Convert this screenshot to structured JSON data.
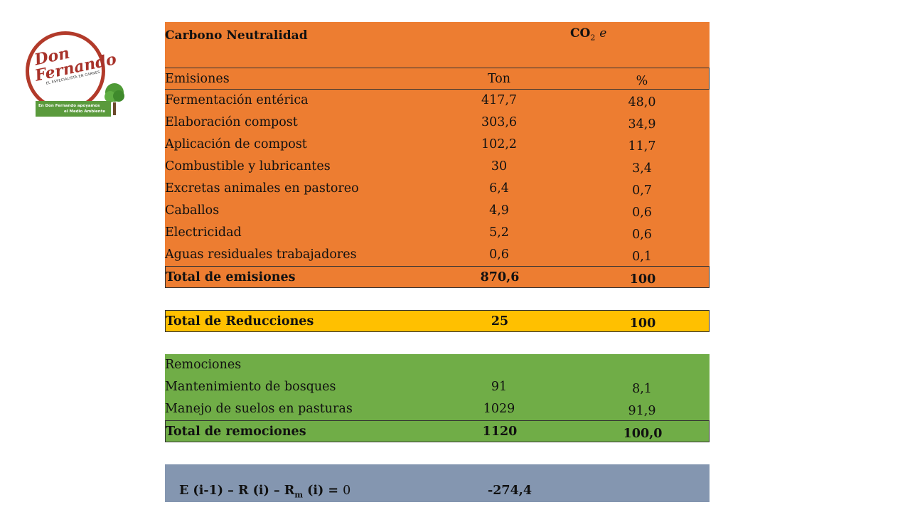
{
  "logo": {
    "brand_line1": "Don",
    "brand_line2": "Fernando",
    "tagline": "EL ESPECIALISTA EN CARNES",
    "banner_line1": "En Don Fernando apoyamos",
    "banner_line2": "el Medio Ambiente"
  },
  "header": {
    "title": "Carbono Neutralidad",
    "unit_main": "CO",
    "unit_sub": "2",
    "unit_suffix": "e"
  },
  "emissions": {
    "col_label": "Emisiones",
    "col_ton": "Ton",
    "col_pct": "%",
    "rows": [
      {
        "label": "Fermentación entérica",
        "ton": "417,7",
        "pct": "48,0"
      },
      {
        "label": "Elaboración compost",
        "ton": "303,6",
        "pct": "34,9"
      },
      {
        "label": "Aplicación de compost",
        "ton": "102,2",
        "pct": "11,7"
      },
      {
        "label": "Combustible y lubricantes",
        "ton": "30",
        "pct": "3,4"
      },
      {
        "label": "Excretas animales en pastoreo",
        "ton": "6,4",
        "pct": "0,7"
      },
      {
        "label": "Caballos",
        "ton": "4,9",
        "pct": "0,6"
      },
      {
        "label": "Electricidad",
        "ton": "5,2",
        "pct": "0,6"
      },
      {
        "label": "Aguas residuales trabajadores",
        "ton": "0,6",
        "pct": "0,1"
      }
    ],
    "total": {
      "label": "Total de emisiones",
      "ton": "870,6",
      "pct": "100"
    }
  },
  "reductions": {
    "total": {
      "label": "Total de Reducciones",
      "ton": "25",
      "pct": "100"
    }
  },
  "removals": {
    "col_label": "Remociones",
    "rows": [
      {
        "label": "Mantenimiento de bosques",
        "ton": "91",
        "pct": "8,1"
      },
      {
        "label": "Manejo de suelos en pasturas",
        "ton": "1029",
        "pct": "91,9"
      }
    ],
    "total": {
      "label": "Total de remociones",
      "ton": "1120",
      "pct": "100,0"
    }
  },
  "formula": {
    "part1": "E (i-1) – R (i) – R",
    "sub": "m",
    "part2": " (i) = ",
    "zero": "0",
    "value": "-274,4"
  }
}
